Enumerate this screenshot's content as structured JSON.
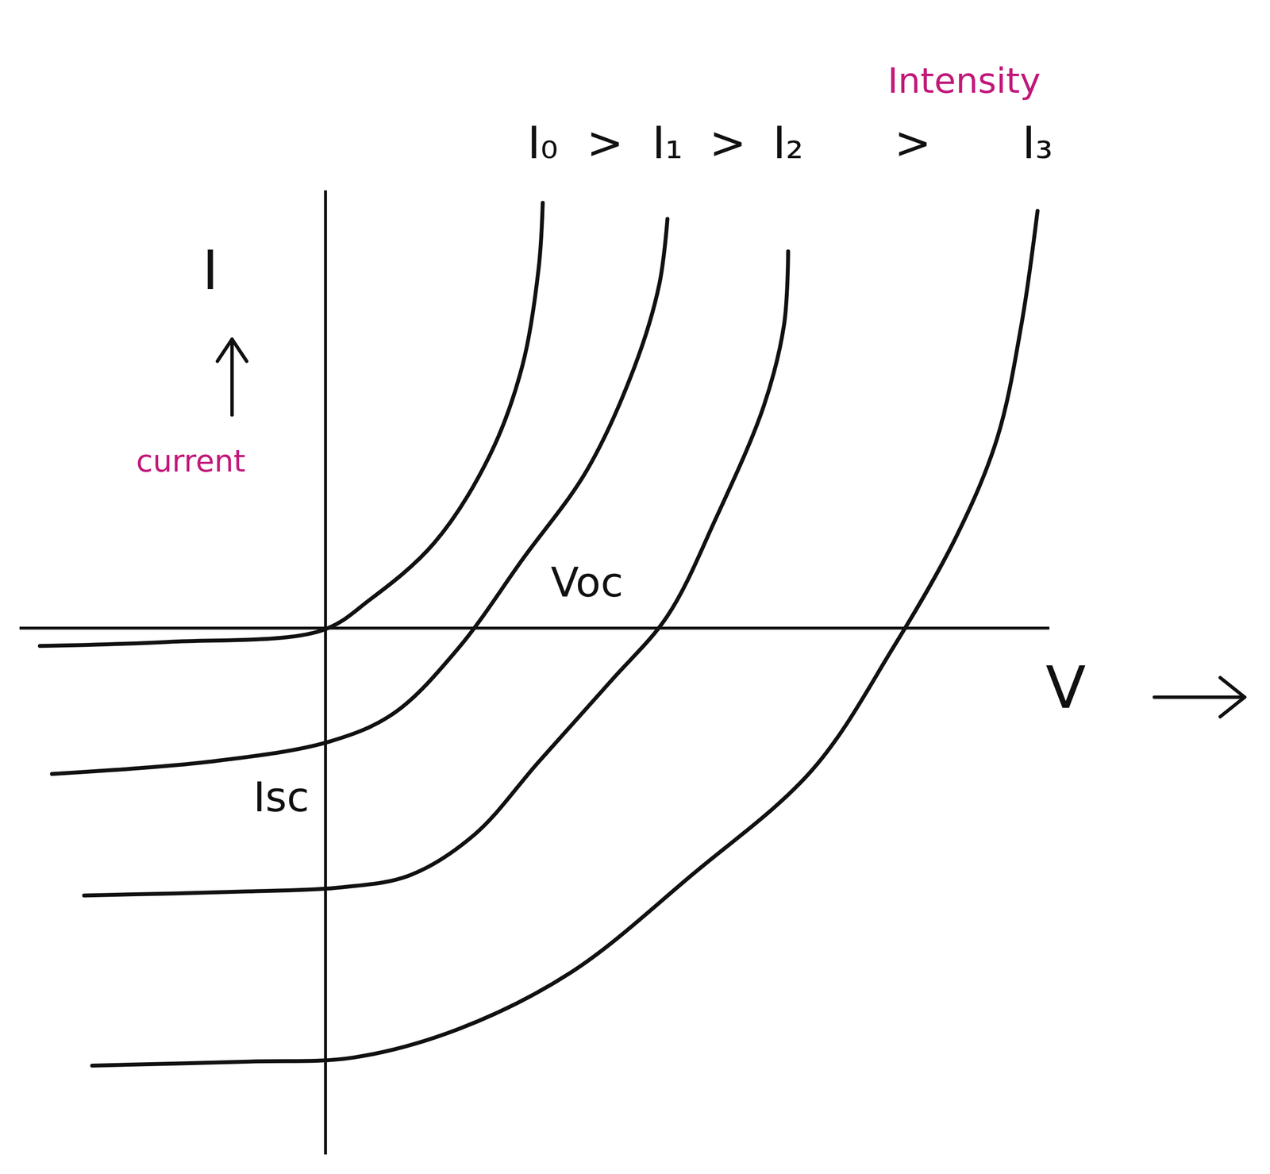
{
  "chart_data": {
    "type": "line",
    "x_label": "V",
    "y_label": "I",
    "y_label_note": "current",
    "legend_title": "Intensity",
    "separator": ">",
    "xlim": [
      -3.8,
      9
    ],
    "ylim": [
      -6.5,
      5.4
    ],
    "tick_labels": false,
    "grid": false,
    "annotations": [
      {
        "text": "Voc",
        "x": 3.25,
        "y": 0.55
      },
      {
        "text": "Isc",
        "x": -0.55,
        "y": -2.1
      }
    ],
    "series": [
      {
        "name": "I₀",
        "color": "#111111",
        "x": [
          -3.55,
          -1.95,
          -0.05,
          0.55,
          1.35,
          2.05,
          2.45,
          2.65,
          2.7
        ],
        "values": [
          -0.22,
          -0.17,
          -0.03,
          0.35,
          1.05,
          2.15,
          3.25,
          4.45,
          5.25
        ]
      },
      {
        "name": "I₁",
        "color": "#111111",
        "x": [
          -3.4,
          -1.45,
          0.05,
          0.85,
          1.65,
          2.45,
          3.25,
          3.85,
          4.15,
          4.25
        ],
        "values": [
          -1.8,
          -1.65,
          -1.4,
          -1.05,
          -0.25,
          0.85,
          1.95,
          3.25,
          4.25,
          5.05
        ]
      },
      {
        "name": "I₂",
        "color": "#111111",
        "x": [
          -3,
          -0.95,
          0.2,
          1.05,
          1.85,
          2.65,
          3.55,
          4.25,
          4.85,
          5.45,
          5.7,
          5.75
        ],
        "values": [
          -3.3,
          -3.25,
          -3.2,
          -3.05,
          -2.55,
          -1.65,
          -0.65,
          0.15,
          1.35,
          2.75,
          3.75,
          4.65
        ]
      },
      {
        "name": "I₃",
        "color": "#111111",
        "x": [
          -2.9,
          -0.95,
          0.35,
          1.65,
          3.05,
          4.55,
          6.05,
          7.05,
          7.85,
          8.35,
          8.65,
          8.85
        ],
        "values": [
          -5.4,
          -5.35,
          -5.3,
          -4.95,
          -4.25,
          -3.05,
          -1.75,
          -0.25,
          1.15,
          2.35,
          3.75,
          5.15
        ]
      }
    ]
  }
}
